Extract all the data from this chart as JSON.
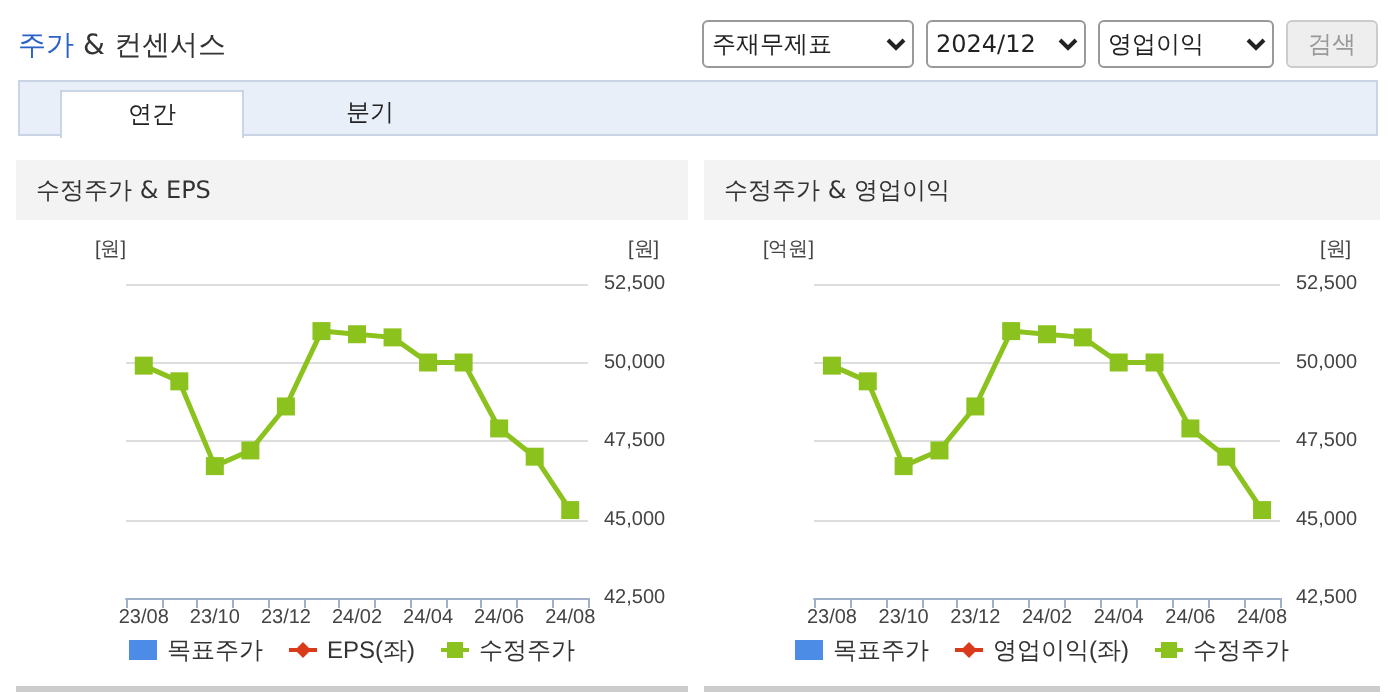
{
  "chart_data": [
    {
      "type": "other",
      "title": "주가 & 컨센서스",
      "annotations": [
        "주재무제표",
        "2024/12",
        "영업이익",
        "검색",
        "연간",
        "분기"
      ]
    },
    {
      "type": "line",
      "title": "수정주가 & EPS",
      "categories": [
        "23/08",
        null,
        "23/10",
        null,
        "23/12",
        null,
        "24/02",
        null,
        "24/04",
        null,
        "24/06",
        null,
        "24/08"
      ],
      "ylabel": "[원]",
      "y2label": "[원]",
      "y2lim": [
        42500,
        52500
      ],
      "y2ticks": [
        {
          "value": 42500,
          "label": "42,500"
        },
        {
          "value": 45000,
          "label": "45,000"
        },
        {
          "value": 47500,
          "label": "47,500"
        },
        {
          "value": 50000,
          "label": "50,000"
        },
        {
          "value": 52500,
          "label": "52,500"
        }
      ],
      "grid": "y",
      "legend": "bottom",
      "series": [
        {
          "name": "목표주가",
          "type": "scatter",
          "marker": "square",
          "color": "#1f6fe0",
          "values": [
            null,
            null,
            null,
            null,
            null,
            null,
            null,
            null,
            null,
            null,
            null,
            null,
            null
          ]
        },
        {
          "name": "EPS(좌)",
          "type": "line",
          "marker": "diamond",
          "color": "#d83a1a",
          "values": [
            null,
            null,
            null,
            null,
            null,
            null,
            null,
            null,
            null,
            null,
            null,
            null,
            null
          ]
        },
        {
          "name": "수정주가",
          "type": "line",
          "marker": "square",
          "color": "#8cc21e",
          "axis": "y2",
          "values": [
            49900,
            49400,
            46700,
            47200,
            48600,
            51000,
            50900,
            50800,
            50000,
            50000,
            47900,
            47000,
            45300
          ]
        }
      ]
    },
    {
      "type": "line",
      "title": "수정주가 & 영업이익",
      "categories": [
        "23/08",
        null,
        "23/10",
        null,
        "23/12",
        null,
        "24/02",
        null,
        "24/04",
        null,
        "24/06",
        null,
        "24/08"
      ],
      "ylabel": "[억원]",
      "y2label": "[원]",
      "y2lim": [
        42500,
        52500
      ],
      "y2ticks": [
        {
          "value": 42500,
          "label": "42,500"
        },
        {
          "value": 45000,
          "label": "45,000"
        },
        {
          "value": 47500,
          "label": "47,500"
        },
        {
          "value": 50000,
          "label": "50,000"
        },
        {
          "value": 52500,
          "label": "52,500"
        }
      ],
      "grid": "y",
      "legend": "bottom",
      "series": [
        {
          "name": "목표주가",
          "type": "scatter",
          "marker": "square",
          "color": "#1f6fe0",
          "values": [
            null,
            null,
            null,
            null,
            null,
            null,
            null,
            null,
            null,
            null,
            null,
            null,
            null
          ]
        },
        {
          "name": "영업이익(좌)",
          "type": "line",
          "marker": "diamond",
          "color": "#d83a1a",
          "values": [
            null,
            null,
            null,
            null,
            null,
            null,
            null,
            null,
            null,
            null,
            null,
            null,
            null
          ]
        },
        {
          "name": "수정주가",
          "type": "line",
          "marker": "square",
          "color": "#8cc21e",
          "axis": "y2",
          "values": [
            49900,
            49400,
            46700,
            47200,
            48600,
            51000,
            50900,
            50800,
            50000,
            50000,
            47900,
            47000,
            45300
          ]
        }
      ]
    }
  ]
}
